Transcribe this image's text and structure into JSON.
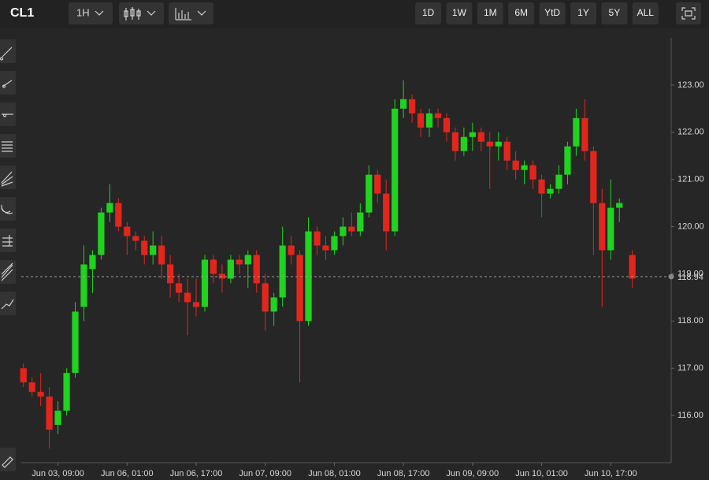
{
  "chart_data": {
    "type": "candlestick",
    "title": "CL1",
    "interval": "1H",
    "ranges": [
      "1D",
      "1W",
      "1M",
      "6M",
      "YtD",
      "1Y",
      "5Y",
      "ALL"
    ],
    "up_color": "#1fd31f",
    "down_color": "#e3261c",
    "x": [
      0,
      2,
      4,
      6,
      8,
      10,
      12,
      14,
      16,
      18,
      20,
      22,
      24,
      26,
      28,
      30,
      32,
      34,
      36,
      38,
      40,
      42,
      44,
      46,
      48,
      50,
      52,
      54,
      56,
      58,
      60,
      62,
      64,
      66,
      68,
      70,
      72,
      74,
      76,
      78,
      80,
      82,
      84,
      86,
      88,
      90,
      92,
      94,
      96,
      98,
      100,
      102,
      104,
      106,
      108,
      110,
      112,
      114,
      116,
      118,
      120,
      122,
      124,
      126,
      128,
      130,
      132,
      134,
      136,
      138,
      141
    ],
    "open": [
      117.0,
      116.7,
      116.5,
      116.4,
      115.8,
      116.1,
      116.9,
      118.3,
      119.1,
      119.4,
      120.3,
      120.5,
      120.0,
      119.8,
      119.7,
      119.4,
      119.6,
      119.2,
      118.8,
      118.6,
      118.4,
      118.3,
      119.3,
      119.0,
      118.9,
      119.3,
      119.2,
      119.4,
      118.8,
      118.2,
      118.5,
      119.6,
      119.4,
      118.0,
      119.9,
      119.6,
      119.5,
      119.8,
      120.0,
      119.9,
      120.3,
      121.1,
      120.7,
      119.9,
      122.5,
      122.7,
      122.4,
      122.1,
      122.4,
      122.3,
      122.0,
      121.6,
      121.9,
      122.0,
      121.8,
      121.7,
      121.8,
      121.4,
      121.2,
      121.3,
      121.0,
      120.7,
      120.8,
      121.1,
      121.7,
      122.3,
      121.6,
      120.5,
      119.5,
      120.4,
      119.4
    ],
    "high": [
      117.1,
      116.8,
      116.9,
      116.6,
      116.3,
      117.0,
      118.4,
      119.6,
      119.5,
      120.4,
      120.9,
      120.6,
      120.1,
      119.9,
      119.8,
      119.9,
      119.8,
      119.4,
      119.0,
      118.9,
      118.9,
      119.4,
      119.4,
      119.2,
      119.4,
      119.4,
      119.5,
      119.5,
      119.0,
      118.6,
      120.0,
      119.8,
      119.5,
      120.2,
      120.0,
      119.8,
      119.9,
      120.2,
      120.3,
      120.5,
      121.3,
      121.2,
      121.0,
      122.7,
      123.1,
      122.8,
      122.5,
      122.5,
      122.5,
      122.4,
      122.1,
      122.1,
      122.2,
      122.1,
      122.0,
      122.0,
      121.9,
      121.6,
      121.4,
      121.4,
      121.1,
      120.9,
      121.3,
      121.8,
      122.5,
      122.7,
      121.7,
      120.8,
      121.0,
      120.6,
      119.5
    ],
    "low": [
      116.6,
      116.4,
      116.2,
      115.3,
      115.6,
      116.0,
      116.8,
      118.0,
      118.6,
      119.3,
      120.1,
      119.9,
      119.4,
      119.5,
      119.2,
      119.2,
      118.9,
      118.5,
      118.4,
      117.7,
      118.1,
      118.2,
      118.8,
      118.6,
      118.8,
      119.0,
      118.7,
      118.6,
      117.8,
      117.9,
      118.3,
      119.2,
      116.7,
      117.9,
      119.4,
      119.3,
      119.4,
      119.6,
      119.8,
      119.8,
      120.2,
      120.5,
      119.5,
      119.8,
      122.3,
      122.2,
      121.9,
      121.9,
      122.1,
      121.8,
      121.4,
      121.5,
      121.6,
      121.6,
      120.8,
      121.4,
      121.2,
      121.0,
      120.9,
      120.8,
      120.2,
      120.6,
      120.7,
      120.9,
      121.5,
      121.4,
      119.4,
      118.3,
      119.3,
      120.1,
      118.7
    ],
    "close": [
      116.7,
      116.5,
      116.4,
      115.7,
      116.1,
      116.9,
      118.2,
      119.2,
      119.4,
      120.3,
      120.5,
      120.0,
      119.8,
      119.7,
      119.4,
      119.6,
      119.2,
      118.8,
      118.6,
      118.4,
      118.3,
      119.3,
      119.0,
      118.9,
      119.3,
      119.2,
      119.4,
      118.8,
      118.2,
      118.5,
      119.6,
      119.4,
      118.0,
      119.9,
      119.6,
      119.5,
      119.8,
      120.0,
      119.9,
      120.3,
      121.1,
      120.7,
      119.9,
      122.5,
      122.7,
      122.4,
      122.1,
      122.4,
      122.3,
      122.0,
      121.6,
      121.9,
      122.0,
      121.8,
      121.7,
      121.8,
      121.4,
      121.2,
      121.3,
      121.0,
      120.7,
      120.8,
      121.1,
      121.7,
      122.3,
      121.6,
      120.5,
      119.5,
      120.4,
      120.5,
      118.9
    ],
    "xlim": [
      -0.5,
      150
    ],
    "xticks": [
      {
        "value": 8,
        "label": "Jun 03, 09:00"
      },
      {
        "value": 24,
        "label": "Jun 06, 01:00"
      },
      {
        "value": 40,
        "label": "Jun 06, 17:00"
      },
      {
        "value": 56,
        "label": "Jun 07, 09:00"
      },
      {
        "value": 72,
        "label": "Jun 08, 01:00"
      },
      {
        "value": 88,
        "label": "Jun 08, 17:00"
      },
      {
        "value": 104,
        "label": "Jun 09, 09:00"
      },
      {
        "value": 120,
        "label": "Jun 10, 01:00"
      },
      {
        "value": 136,
        "label": "Jun 10, 17:00"
      }
    ],
    "ylim": [
      115,
      124
    ],
    "yticks": [
      {
        "value": 116,
        "label": "116.00"
      },
      {
        "value": 117,
        "label": "117.00"
      },
      {
        "value": 118,
        "label": "118.00"
      },
      {
        "value": 119,
        "label": "119.00"
      },
      {
        "value": 120,
        "label": "120.00"
      },
      {
        "value": 121,
        "label": "121.00"
      },
      {
        "value": 122,
        "label": "122.00"
      },
      {
        "value": 123,
        "label": "123.00"
      }
    ],
    "last_price": 118.94
  }
}
